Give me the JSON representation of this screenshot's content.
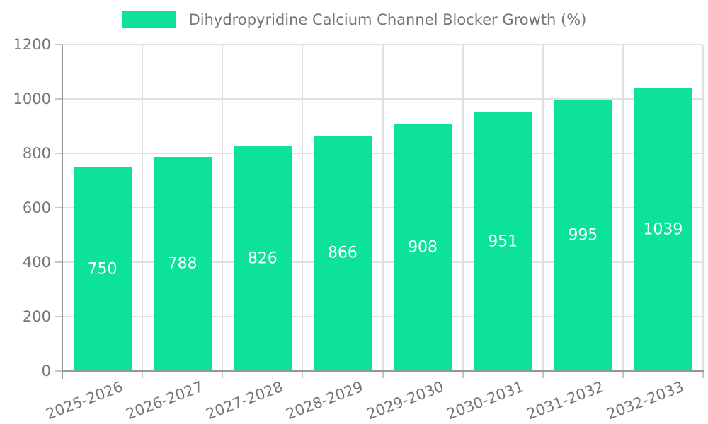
{
  "chart_data": {
    "type": "bar",
    "title": "",
    "legend": {
      "label": "Dihydropyridine Calcium Channel Blocker Growth (%)",
      "position": "top"
    },
    "categories": [
      "2025-2026",
      "2026-2027",
      "2027-2028",
      "2028-2029",
      "2029-2030",
      "2030-2031",
      "2031-2032",
      "2032-2033"
    ],
    "values": [
      750,
      788,
      826,
      866,
      908,
      951,
      995,
      1039
    ],
    "yticks": [
      0,
      200,
      400,
      600,
      800,
      1000,
      1200
    ],
    "ylim": [
      0,
      1200
    ],
    "grid": true,
    "x_tick_rotation_deg": -21,
    "colors": {
      "bar": "#0ce29b",
      "value_label": "#ffffff",
      "axis_text": "#757575",
      "gridline": "#e0e0e0",
      "axis_line": "#969696"
    }
  }
}
